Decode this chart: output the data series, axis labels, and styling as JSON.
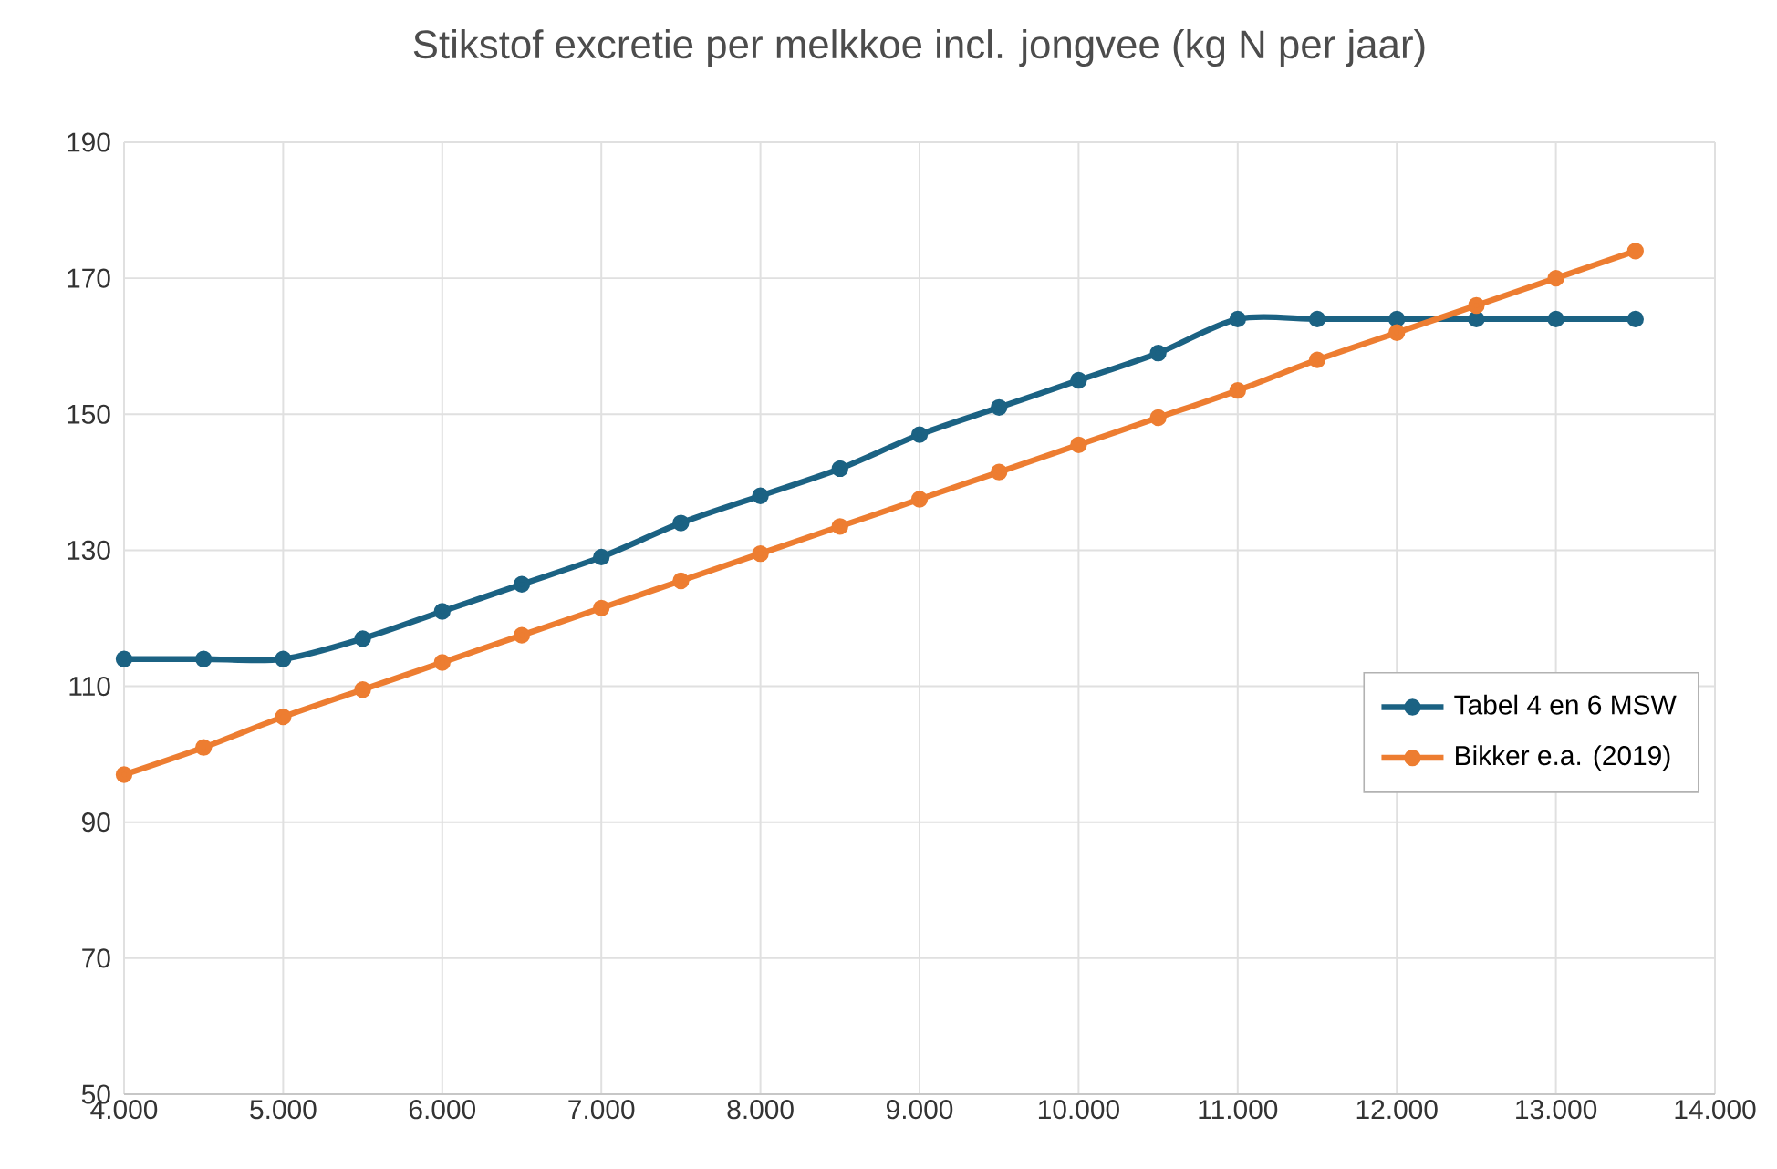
{
  "chart_data": {
    "type": "line",
    "title": "Stikstof excretie per melkkoe incl. jongvee (kg N per jaar)",
    "x": [
      4000,
      4500,
      5000,
      5500,
      6000,
      6500,
      7000,
      7500,
      8000,
      8500,
      9000,
      9500,
      10000,
      10500,
      11000,
      11500,
      12000,
      12500,
      13000,
      13500
    ],
    "series": [
      {
        "name": "Tabel 4 en 6 MSW",
        "color": "#1b6283",
        "values": [
          114,
          114,
          114,
          117,
          121,
          125,
          129,
          134,
          138,
          142,
          147,
          151,
          155,
          159,
          164,
          164,
          164,
          164,
          164,
          164
        ]
      },
      {
        "name": "Bikker e.a. (2019)",
        "color": "#ed7d31",
        "values": [
          97,
          101,
          105.5,
          109.5,
          113.5,
          117.5,
          121.5,
          125.5,
          129.5,
          133.5,
          137.5,
          141.5,
          145.5,
          149.5,
          153.5,
          158,
          162,
          166,
          170,
          174
        ]
      }
    ],
    "xlim": [
      4000,
      14000
    ],
    "xticks": [
      {
        "value": 4000,
        "label": "4.000"
      },
      {
        "value": 5000,
        "label": "5.000"
      },
      {
        "value": 6000,
        "label": "6.000"
      },
      {
        "value": 7000,
        "label": "7.000"
      },
      {
        "value": 8000,
        "label": "8.000"
      },
      {
        "value": 9000,
        "label": "9.000"
      },
      {
        "value": 10000,
        "label": "10.000"
      },
      {
        "value": 11000,
        "label": "11.000"
      },
      {
        "value": 12000,
        "label": "12.000"
      },
      {
        "value": 13000,
        "label": "13.000"
      },
      {
        "value": 14000,
        "label": "14.000"
      }
    ],
    "ylim": [
      50,
      190
    ],
    "yticks": [
      50,
      70,
      90,
      110,
      130,
      150,
      170,
      190
    ],
    "grid": true,
    "legend": "right",
    "marker": "circle",
    "line_style": "solid"
  }
}
